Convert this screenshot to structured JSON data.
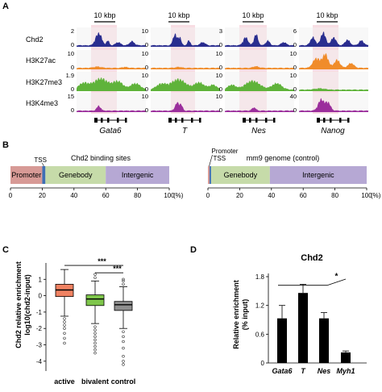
{
  "panels": {
    "A": "A",
    "B": "B",
    "C": "C",
    "D": "D"
  },
  "colors": {
    "Chd2": "#2a2d8f",
    "H3K27ac": "#f08c2a",
    "H3K27me3": "#5fb33a",
    "H3K4me3": "#9b2e9c",
    "highlight": "#f8dde3",
    "track_bg": "#f2f2f2",
    "promoter": "#d79a96",
    "tss": "#3f6fb5",
    "genebody": "#c6dba9",
    "intergenic": "#b6a8d4",
    "box_active": "#f08262",
    "box_bivalent": "#7ec64b",
    "box_control": "#8f8f8f",
    "bar": "#000000"
  },
  "tracks": {
    "scale_label": "10 kbp",
    "marks": [
      "Chd2",
      "H3K27ac",
      "H3K27me3",
      "H3K4me3"
    ],
    "loci": [
      {
        "gene": "Gata6",
        "scales": [
          [
            "2",
            "0"
          ],
          [
            "10",
            "0"
          ],
          [
            "1.9",
            "0"
          ],
          [
            "15",
            "0"
          ]
        ]
      },
      {
        "gene": "T",
        "scales": [
          [
            "10",
            "0"
          ],
          [
            "10",
            "0"
          ],
          [
            "10",
            "0"
          ],
          [
            "10",
            "0"
          ]
        ]
      },
      {
        "gene": "Nes",
        "scales": [
          [
            "3",
            "0"
          ],
          [
            "10",
            "0"
          ],
          [
            "10",
            "0"
          ],
          [
            "10",
            "0"
          ]
        ]
      },
      {
        "gene": "Nanog",
        "scales": [
          [
            "6",
            "0"
          ],
          [
            "10",
            "0"
          ],
          [
            "10",
            "0"
          ],
          [
            "40",
            "0"
          ]
        ]
      }
    ]
  },
  "panelB": {
    "left": {
      "title": "Chd2 binding sites",
      "segments": [
        {
          "label": "Promoter",
          "start": 0,
          "end": 20,
          "color": "#d79a96"
        },
        {
          "label": "TSS",
          "start": 20,
          "end": 22,
          "color": "#3f6fb5"
        },
        {
          "label": "Genebody",
          "start": 22,
          "end": 60,
          "color": "#c6dba9"
        },
        {
          "label": "Intergenic",
          "start": 60,
          "end": 100,
          "color": "#b6a8d4"
        }
      ]
    },
    "right": {
      "title": "mm9 genome (control)",
      "segments": [
        {
          "label": "Promoter",
          "start": 0,
          "end": 1,
          "color": "#d79a96"
        },
        {
          "label": "TSS",
          "start": 1,
          "end": 2,
          "color": "#3f6fb5"
        },
        {
          "label": "Genebody",
          "start": 2,
          "end": 39,
          "color": "#c6dba9"
        },
        {
          "label": "Intergenic",
          "start": 39,
          "end": 100,
          "color": "#b6a8d4"
        }
      ]
    },
    "ticks": [
      "0",
      "20",
      "40",
      "60",
      "80",
      "100"
    ],
    "unit": "(%)"
  },
  "chart_data": [
    {
      "type": "box",
      "panel": "C",
      "ylabel_line1": "Chd2 relative enrichment",
      "ylabel_line2": "log10(chd2-input)",
      "categories": [
        "active",
        "bivalent",
        "control"
      ],
      "boxes": [
        {
          "name": "active",
          "whisker_low": -1.25,
          "q1": -0.05,
          "median": 0.35,
          "q3": 0.7,
          "whisker_high": 1.6,
          "outliers_low": [
            -1.4,
            -1.6,
            -1.8,
            -2.0,
            -2.3,
            -2.6,
            -2.9
          ],
          "outliers_high": []
        },
        {
          "name": "bivalent",
          "whisker_low": -1.7,
          "q1": -0.6,
          "median": -0.2,
          "q3": 0.05,
          "whisker_high": 0.9,
          "outliers_low": [
            -1.9,
            -2.1,
            -2.3,
            -2.5,
            -2.7,
            -2.9,
            -3.1,
            -3.3,
            -3.5
          ],
          "outliers_high": [
            1.1,
            1.3
          ]
        },
        {
          "name": "control",
          "whisker_low": -2.0,
          "q1": -0.9,
          "median": -0.55,
          "q3": -0.35,
          "whisker_high": 0.55,
          "outliers_low": [
            -2.2,
            -2.5,
            -2.8,
            -3.2,
            -3.7,
            -4.0,
            -4.2
          ],
          "outliers_high": [
            0.7,
            0.9,
            1.0
          ]
        }
      ],
      "ylim": [
        -4.6,
        2.0
      ],
      "yticks": [
        "-4",
        "-3",
        "-2",
        "-1",
        "0",
        "1"
      ],
      "significance": [
        {
          "from": "active",
          "to": "control",
          "label": "***"
        },
        {
          "from": "bivalent",
          "to": "control",
          "label": "***"
        }
      ]
    },
    {
      "type": "bar",
      "panel": "D",
      "title": "Chd2",
      "ylabel_line1": "Relative enrichment",
      "ylabel_line2": "(% input)",
      "categories": [
        "Gata6",
        "T",
        "Nes",
        "Myh1"
      ],
      "values": [
        0.93,
        1.46,
        0.93,
        0.22
      ],
      "errors": [
        0.27,
        0.18,
        0.12,
        0.03
      ],
      "ylim": [
        0,
        1.8
      ],
      "yticks": [
        "0",
        "0.6",
        "1.2",
        "1.8"
      ],
      "significance": [
        {
          "from": "Gata6",
          "to": "Myh1",
          "label": "*"
        }
      ]
    }
  ]
}
